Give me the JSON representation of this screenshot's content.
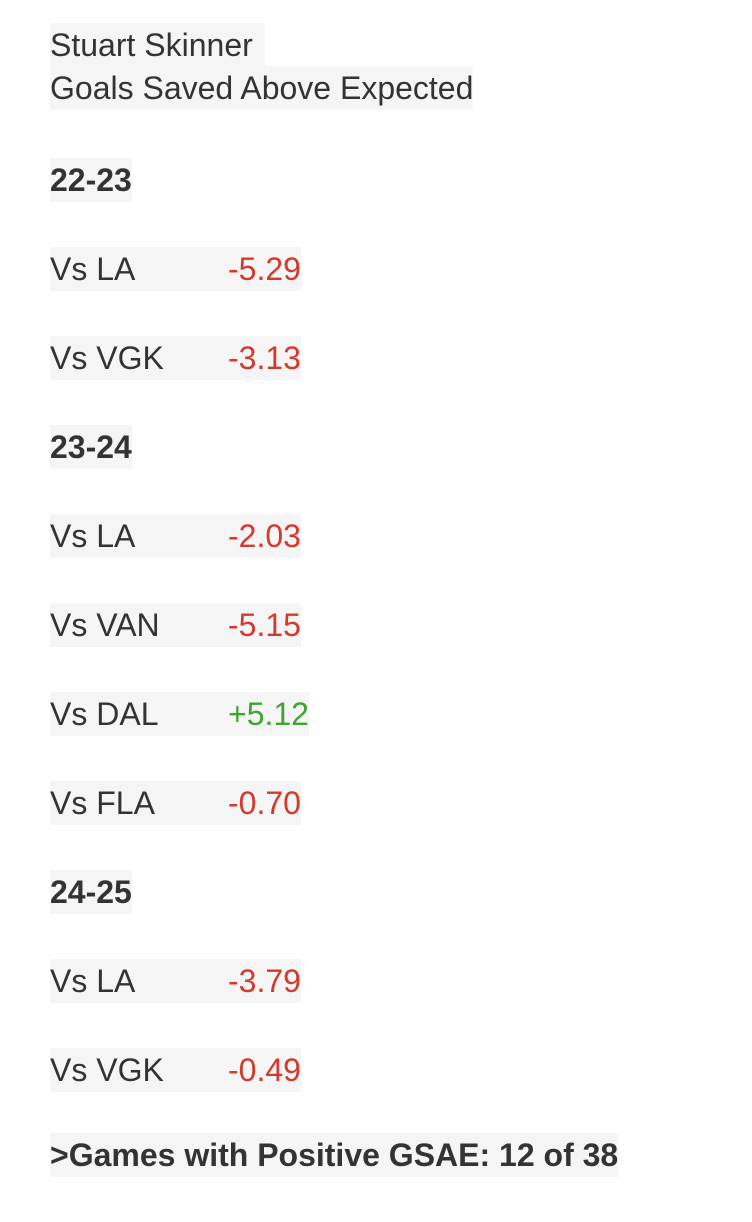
{
  "header": {
    "title": "Stuart Skinner",
    "subtitle": "Goals Saved Above Expected"
  },
  "sections": [
    {
      "season": "22-23",
      "rows": [
        [
          "Vs LA",
          "-5.29"
        ],
        [
          "Vs VGK",
          "-3.13"
        ]
      ]
    },
    {
      "season": "23-24",
      "rows": [
        [
          "Vs LA",
          "-2.03"
        ],
        [
          "Vs VAN",
          "-5.15"
        ],
        [
          "Vs DAL",
          "+5.12"
        ],
        [
          "Vs FLA",
          "-0.70"
        ]
      ]
    },
    {
      "season": "24-25",
      "rows": [
        [
          "Vs LA",
          "-3.79"
        ],
        [
          "Vs VGK",
          "-0.49"
        ]
      ]
    }
  ],
  "footer": ">Games with Positive GSAE: 12 of 38"
}
